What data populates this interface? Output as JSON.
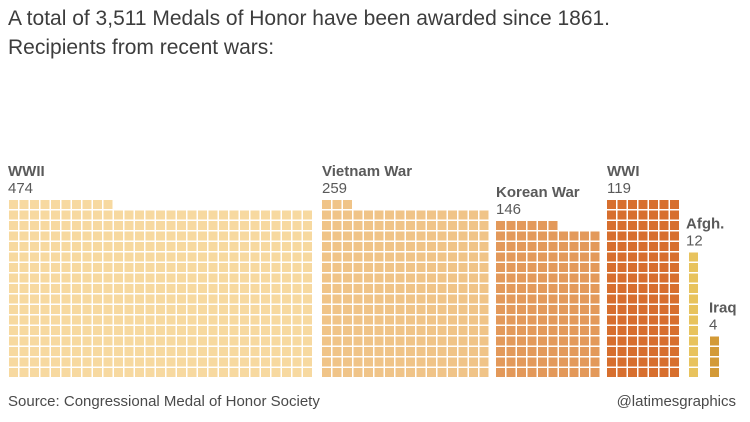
{
  "title": "A total of 3,511 Medals of Honor have been awarded since 1861.",
  "subtitle": "Recipients from recent wars:",
  "source": "Source: Congressional Medal of Honor Society",
  "credit": "@latimesgraphics",
  "chart_data": {
    "type": "waffle",
    "title": "A total of 3,511 Medals of Honor have been awarded since 1861.",
    "subtitle": "Recipients from recent wars:",
    "unit": "one square = one medal",
    "series": [
      {
        "name": "WWII",
        "value": 474,
        "color": "#f7d9a0"
      },
      {
        "name": "Vietnam War",
        "value": 259,
        "color": "#f0c488"
      },
      {
        "name": "Korean War",
        "value": 146,
        "color": "#e3995a"
      },
      {
        "name": "WWI",
        "value": 119,
        "color": "#d76f2e"
      },
      {
        "name": "Afgh.",
        "value": 12,
        "color": "#e8c35e"
      },
      {
        "name": "Iraq",
        "value": 4,
        "color": "#d39a37"
      }
    ]
  }
}
